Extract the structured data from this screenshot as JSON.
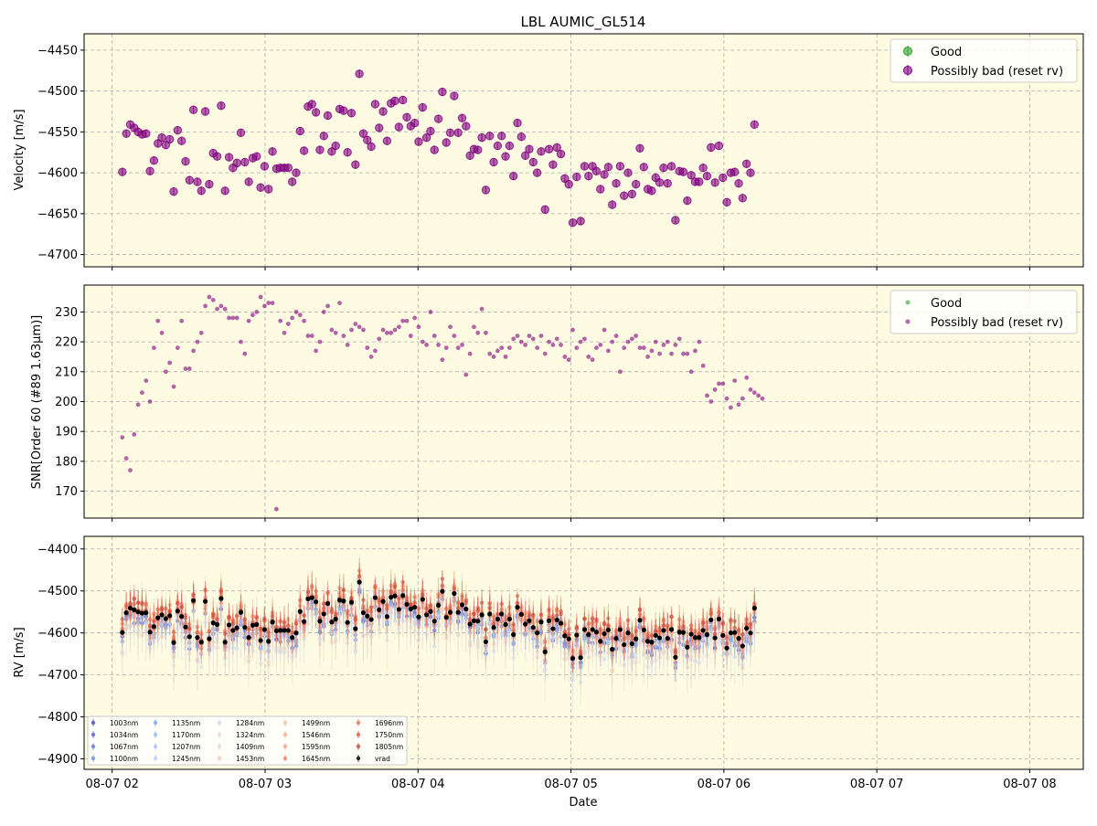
{
  "figure": {
    "title": "LBL AUMIC_GL514",
    "xlabel": "Date"
  },
  "chart_data": [
    {
      "type": "scatter",
      "panel": "velocity",
      "ylabel": "Velocity [m/s]",
      "xlim": [
        "08-07 01:49",
        "08-07 08:21"
      ],
      "ylim": [
        -4715,
        -4430
      ],
      "y_ticks": [
        -4700,
        -4650,
        -4600,
        -4550,
        -4500,
        -4450
      ],
      "grid": true,
      "legend": {
        "position": "top-right",
        "entries": [
          {
            "label": "Good",
            "color": "#2ca02c"
          },
          {
            "label": "Possibly bad (reset rv)",
            "color": "#800080"
          }
        ]
      },
      "error_bar_m_s": 5,
      "series": [
        {
          "name": "Possibly bad (reset rv)",
          "color": "#800080",
          "x_start": "08-07 02:04",
          "x_step_min": 1.55,
          "y": [
            -4599,
            -4552,
            -4541,
            -4545,
            -4550,
            -4553,
            -4552,
            -4598,
            -4585,
            -4564,
            -4557,
            -4566,
            -4559,
            -4623,
            -4548,
            -4561,
            -4586,
            -4609,
            -4523,
            -4611,
            -4622,
            -4525,
            -4614,
            -4576,
            -4580,
            -4518,
            -4622,
            -4581,
            -4594,
            -4588,
            -4551,
            -4587,
            -4611,
            -4582,
            -4580,
            -4618,
            -4592,
            -4620,
            -4574,
            -4595,
            -4594,
            -4594,
            -4594,
            -4611,
            -4600,
            -4549,
            -4573,
            -4519,
            -4516,
            -4526,
            -4572,
            -4555,
            -4530,
            -4574,
            -4567,
            -4522,
            -4524,
            -4575,
            -4527,
            -4590,
            -4479,
            -4552,
            -4560,
            -4568,
            -4516,
            -4545,
            -4525,
            -4561,
            -4515,
            -4512,
            -4544,
            -4511,
            -4532,
            -4543,
            -4539,
            -4562,
            -4520,
            -4557,
            -4549,
            -4572,
            -4534,
            -4501,
            -4563,
            -4551,
            -4506,
            -4551,
            -4533,
            -4543,
            -4579,
            -4571,
            -4572,
            -4557,
            -4621,
            -4555,
            -4587,
            -4567,
            -4555,
            -4580,
            -4567,
            -4604,
            -4539,
            -4556,
            -4579,
            -4571,
            -4587,
            -4600,
            -4574,
            -4645,
            -4571,
            -4590,
            -4569,
            -4577,
            -4607,
            -4614,
            -4661,
            -4605,
            -4659,
            -4592,
            -4604,
            -4592,
            -4598,
            -4620,
            -4602,
            -4593,
            -4639,
            -4613,
            -4592,
            -4628,
            -4600,
            -4626,
            -4614,
            -4570,
            -4593,
            -4620,
            -4622,
            -4606,
            -4612,
            -4594,
            -4613,
            -4592,
            -4658,
            -4598,
            -4599,
            -4634,
            -4603,
            -4611,
            -4611,
            -4594,
            -4604,
            -4569,
            -4612,
            -4567,
            -4606,
            -4636,
            -4600,
            -4599,
            -4613,
            -4631,
            -4589,
            -4600,
            -4541
          ]
        }
      ]
    },
    {
      "type": "scatter",
      "panel": "snr",
      "ylabel": "SNR[Order 60 (#89 1.63μm)]",
      "ylim": [
        161,
        239
      ],
      "y_ticks": [
        170,
        180,
        190,
        200,
        210,
        220,
        230
      ],
      "grid": true,
      "legend": {
        "position": "top-right",
        "entries": [
          {
            "label": "Good",
            "color": "#2ca02c"
          },
          {
            "label": "Possibly bad (reset rv)",
            "color": "#800080"
          }
        ]
      },
      "series": [
        {
          "name": "Possibly bad (reset rv)",
          "color": "#800080",
          "x_start": "08-07 02:04",
          "x_step_min": 1.55,
          "y": [
            188,
            181,
            177,
            189,
            199,
            203,
            207,
            200,
            218,
            227,
            223,
            210,
            213,
            205,
            218,
            227,
            211,
            211,
            217,
            220,
            223,
            232,
            235,
            234,
            231,
            232,
            231,
            228,
            228,
            228,
            220,
            216,
            227,
            229,
            230,
            235,
            232,
            233,
            233,
            164,
            227,
            223,
            226,
            228,
            230,
            229,
            227,
            222,
            222,
            217,
            220,
            230,
            232,
            224,
            223,
            233,
            222,
            219,
            224,
            226,
            225,
            224,
            218,
            215,
            217,
            221,
            224,
            223,
            223,
            224,
            225,
            227,
            227,
            222,
            228,
            225,
            220,
            219,
            230,
            222,
            219,
            214,
            218,
            225,
            222,
            218,
            219,
            209,
            216,
            225,
            223,
            231,
            223,
            216,
            215,
            217,
            218,
            215,
            218,
            221,
            222,
            220,
            219,
            222,
            221,
            218,
            222,
            216,
            220,
            219,
            221,
            219,
            215,
            214,
            224,
            218,
            220,
            221,
            215,
            214,
            218,
            219,
            224,
            217,
            220,
            222,
            210,
            218,
            220,
            221,
            222,
            218,
            218,
            215,
            217,
            220,
            216,
            219,
            220,
            216,
            219,
            221,
            216,
            216,
            210,
            217,
            220,
            212,
            202,
            200,
            204,
            206,
            206,
            201,
            198,
            207,
            199,
            201,
            208,
            204,
            203,
            202,
            201
          ]
        }
      ]
    },
    {
      "type": "scatter",
      "panel": "rv",
      "ylabel": "RV [m/s]",
      "xlabel": "Date",
      "ylim": [
        -4925,
        -4370
      ],
      "y_ticks": [
        -4900,
        -4800,
        -4700,
        -4600,
        -4500,
        -4400
      ],
      "x_ticks": [
        "08-07 02",
        "08-07 03",
        "08-07 04",
        "08-07 05",
        "08-07 06",
        "08-07 07",
        "08-07 08"
      ],
      "grid": true,
      "legend": {
        "position": "bottom-left",
        "columns": 5,
        "entries": [
          {
            "label": "1003nm",
            "color": "#3b4cc0"
          },
          {
            "label": "1034nm",
            "color": "#4a63d3"
          },
          {
            "label": "1067nm",
            "color": "#5b7be0"
          },
          {
            "label": "1100nm",
            "color": "#6d90eb"
          },
          {
            "label": "1135nm",
            "color": "#80a4f4"
          },
          {
            "label": "1170nm",
            "color": "#93b5f9"
          },
          {
            "label": "1207nm",
            "color": "#a6c4fb"
          },
          {
            "label": "1245nm",
            "color": "#b9d0f9"
          },
          {
            "label": "1284nm",
            "color": "#cad8ef"
          },
          {
            "label": "1324nm",
            "color": "#d9dce1"
          },
          {
            "label": "1409nm",
            "color": "#e8d6cb"
          },
          {
            "label": "1453nm",
            "color": "#f1cdb6"
          },
          {
            "label": "1499nm",
            "color": "#f5c0a2"
          },
          {
            "label": "1546nm",
            "color": "#f6b08d"
          },
          {
            "label": "1595nm",
            "color": "#f59e7a"
          },
          {
            "label": "1645nm",
            "color": "#ef8a67"
          },
          {
            "label": "1696nm",
            "color": "#e67456"
          },
          {
            "label": "1750nm",
            "color": "#da5c47"
          },
          {
            "label": "1805nm",
            "color": "#c9433a"
          },
          {
            "label": "vrad",
            "color": "#000000"
          }
        ]
      },
      "series": [
        {
          "name": "vrad",
          "color": "#000000",
          "values_ref": "velocity"
        }
      ]
    }
  ]
}
